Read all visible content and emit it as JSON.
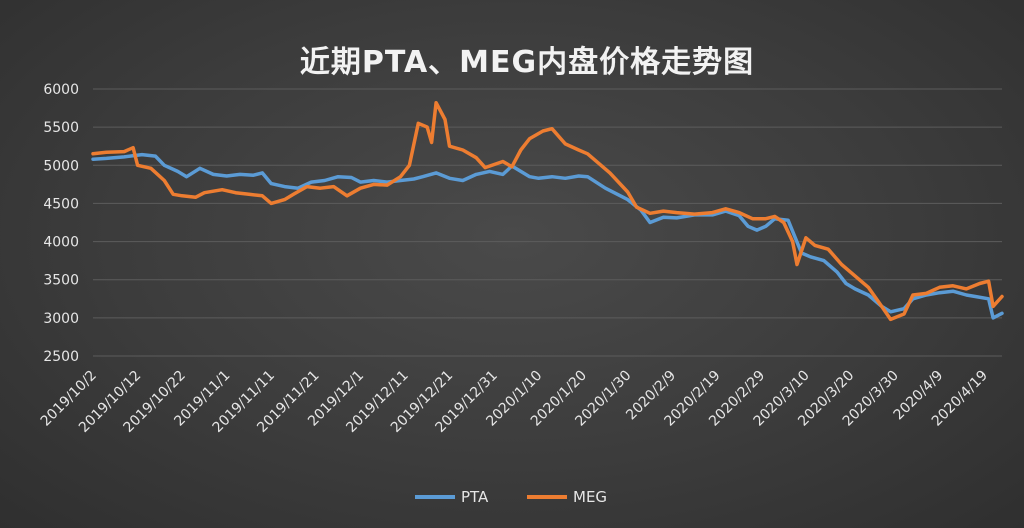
{
  "chart_data": {
    "type": "line",
    "title": "近期PTA、MEG内盘价格走势图",
    "ylim": [
      2500,
      6000
    ],
    "yticks": [
      2500,
      3000,
      3500,
      4000,
      4500,
      5000,
      5500,
      6000
    ],
    "x_start": "2019/10/2",
    "x_end": "2020/4/23",
    "xticks": [
      "2019/10/2",
      "2019/10/12",
      "2019/10/22",
      "2019/11/1",
      "2019/11/11",
      "2019/11/21",
      "2019/12/1",
      "2019/12/11",
      "2019/12/21",
      "2019/12/31",
      "2020/1/10",
      "2020/1/20",
      "2020/1/30",
      "2020/2/9",
      "2020/2/19",
      "2020/2/29",
      "2020/3/10",
      "2020/3/20",
      "2020/3/30",
      "2020/4/9",
      "2020/4/19"
    ],
    "grid": true,
    "legend_position": "bottom",
    "series": [
      {
        "name": "PTA",
        "color": "#5b9bd5",
        "points": [
          [
            "2019/10/2",
            5080
          ],
          [
            "2019/10/5",
            5090
          ],
          [
            "2019/10/9",
            5110
          ],
          [
            "2019/10/13",
            5140
          ],
          [
            "2019/10/16",
            5120
          ],
          [
            "2019/10/18",
            5000
          ],
          [
            "2019/10/21",
            4920
          ],
          [
            "2019/10/23",
            4850
          ],
          [
            "2019/10/26",
            4960
          ],
          [
            "2019/10/29",
            4880
          ],
          [
            "2019/11/1",
            4860
          ],
          [
            "2019/11/4",
            4880
          ],
          [
            "2019/11/7",
            4870
          ],
          [
            "2019/11/9",
            4900
          ],
          [
            "2019/11/11",
            4760
          ],
          [
            "2019/11/14",
            4720
          ],
          [
            "2019/11/17",
            4700
          ],
          [
            "2019/11/20",
            4780
          ],
          [
            "2019/11/23",
            4800
          ],
          [
            "2019/11/26",
            4850
          ],
          [
            "2019/11/29",
            4840
          ],
          [
            "2019/12/1",
            4780
          ],
          [
            "2019/12/4",
            4800
          ],
          [
            "2019/12/7",
            4780
          ],
          [
            "2019/12/10",
            4800
          ],
          [
            "2019/12/13",
            4820
          ],
          [
            "2019/12/15",
            4850
          ],
          [
            "2019/12/18",
            4900
          ],
          [
            "2019/12/21",
            4830
          ],
          [
            "2019/12/24",
            4800
          ],
          [
            "2019/12/27",
            4880
          ],
          [
            "2019/12/30",
            4920
          ],
          [
            "2020/1/2",
            4880
          ],
          [
            "2020/1/4",
            4990
          ],
          [
            "2020/1/6",
            4920
          ],
          [
            "2020/1/8",
            4850
          ],
          [
            "2020/1/10",
            4830
          ],
          [
            "2020/1/13",
            4850
          ],
          [
            "2020/1/16",
            4830
          ],
          [
            "2020/1/19",
            4860
          ],
          [
            "2020/1/21",
            4850
          ],
          [
            "2020/1/25",
            4700
          ],
          [
            "2020/1/30",
            4550
          ],
          [
            "2020/2/2",
            4410
          ],
          [
            "2020/2/4",
            4250
          ],
          [
            "2020/2/7",
            4320
          ],
          [
            "2020/2/10",
            4310
          ],
          [
            "2020/2/14",
            4350
          ],
          [
            "2020/2/18",
            4350
          ],
          [
            "2020/2/21",
            4400
          ],
          [
            "2020/2/24",
            4340
          ],
          [
            "2020/2/26",
            4200
          ],
          [
            "2020/2/28",
            4150
          ],
          [
            "2020/3/1",
            4200
          ],
          [
            "2020/3/3",
            4300
          ],
          [
            "2020/3/6",
            4280
          ],
          [
            "2020/3/9",
            3850
          ],
          [
            "2020/3/11",
            3800
          ],
          [
            "2020/3/14",
            3750
          ],
          [
            "2020/3/17",
            3600
          ],
          [
            "2020/3/19",
            3450
          ],
          [
            "2020/3/21",
            3380
          ],
          [
            "2020/3/24",
            3300
          ],
          [
            "2020/3/27",
            3150
          ],
          [
            "2020/3/29",
            3080
          ],
          [
            "2020/4/1",
            3120
          ],
          [
            "2020/4/3",
            3250
          ],
          [
            "2020/4/6",
            3300
          ],
          [
            "2020/4/9",
            3330
          ],
          [
            "2020/4/12",
            3350
          ],
          [
            "2020/4/15",
            3300
          ],
          [
            "2020/4/17",
            3280
          ],
          [
            "2020/4/20",
            3250
          ],
          [
            "2020/4/21",
            3000
          ],
          [
            "2020/4/23",
            3060
          ]
        ]
      },
      {
        "name": "MEG",
        "color": "#ed7d31",
        "points": [
          [
            "2019/10/2",
            5150
          ],
          [
            "2019/10/5",
            5170
          ],
          [
            "2019/10/9",
            5180
          ],
          [
            "2019/10/11",
            5230
          ],
          [
            "2019/10/12",
            5000
          ],
          [
            "2019/10/15",
            4960
          ],
          [
            "2019/10/18",
            4800
          ],
          [
            "2019/10/20",
            4620
          ],
          [
            "2019/10/22",
            4600
          ],
          [
            "2019/10/25",
            4580
          ],
          [
            "2019/10/27",
            4640
          ],
          [
            "2019/10/31",
            4680
          ],
          [
            "2019/11/3",
            4640
          ],
          [
            "2019/11/6",
            4620
          ],
          [
            "2019/11/9",
            4600
          ],
          [
            "2019/11/11",
            4500
          ],
          [
            "2019/11/14",
            4550
          ],
          [
            "2019/11/16",
            4620
          ],
          [
            "2019/11/19",
            4720
          ],
          [
            "2019/11/22",
            4700
          ],
          [
            "2019/11/25",
            4720
          ],
          [
            "2019/11/28",
            4600
          ],
          [
            "2019/12/1",
            4700
          ],
          [
            "2019/12/4",
            4750
          ],
          [
            "2019/12/7",
            4740
          ],
          [
            "2019/12/10",
            4850
          ],
          [
            "2019/12/12",
            5000
          ],
          [
            "2019/12/14",
            5550
          ],
          [
            "2019/12/16",
            5500
          ],
          [
            "2019/12/17",
            5300
          ],
          [
            "2019/12/18",
            5820
          ],
          [
            "2019/12/20",
            5600
          ],
          [
            "2019/12/21",
            5250
          ],
          [
            "2019/12/24",
            5200
          ],
          [
            "2019/12/27",
            5100
          ],
          [
            "2019/12/29",
            4970
          ],
          [
            "2020/1/2",
            5050
          ],
          [
            "2020/1/4",
            4980
          ],
          [
            "2020/1/6",
            5200
          ],
          [
            "2020/1/8",
            5350
          ],
          [
            "2020/1/11",
            5450
          ],
          [
            "2020/1/13",
            5480
          ],
          [
            "2020/1/16",
            5280
          ],
          [
            "2020/1/19",
            5200
          ],
          [
            "2020/1/21",
            5150
          ],
          [
            "2020/1/26",
            4900
          ],
          [
            "2020/1/30",
            4650
          ],
          [
            "2020/2/1",
            4450
          ],
          [
            "2020/2/4",
            4370
          ],
          [
            "2020/2/7",
            4400
          ],
          [
            "2020/2/10",
            4380
          ],
          [
            "2020/2/14",
            4360
          ],
          [
            "2020/2/18",
            4380
          ],
          [
            "2020/2/21",
            4430
          ],
          [
            "2020/2/24",
            4380
          ],
          [
            "2020/2/27",
            4300
          ],
          [
            "2020/3/1",
            4300
          ],
          [
            "2020/3/3",
            4330
          ],
          [
            "2020/3/5",
            4250
          ],
          [
            "2020/3/7",
            4000
          ],
          [
            "2020/3/8",
            3700
          ],
          [
            "2020/3/10",
            4050
          ],
          [
            "2020/3/12",
            3950
          ],
          [
            "2020/3/15",
            3900
          ],
          [
            "2020/3/18",
            3700
          ],
          [
            "2020/3/21",
            3550
          ],
          [
            "2020/3/24",
            3400
          ],
          [
            "2020/3/27",
            3150
          ],
          [
            "2020/3/29",
            2980
          ],
          [
            "2020/4/1",
            3050
          ],
          [
            "2020/4/3",
            3300
          ],
          [
            "2020/4/6",
            3320
          ],
          [
            "2020/4/9",
            3400
          ],
          [
            "2020/4/12",
            3420
          ],
          [
            "2020/4/15",
            3380
          ],
          [
            "2020/4/18",
            3450
          ],
          [
            "2020/4/20",
            3480
          ],
          [
            "2020/4/21",
            3150
          ],
          [
            "2020/4/23",
            3280
          ]
        ]
      }
    ]
  }
}
